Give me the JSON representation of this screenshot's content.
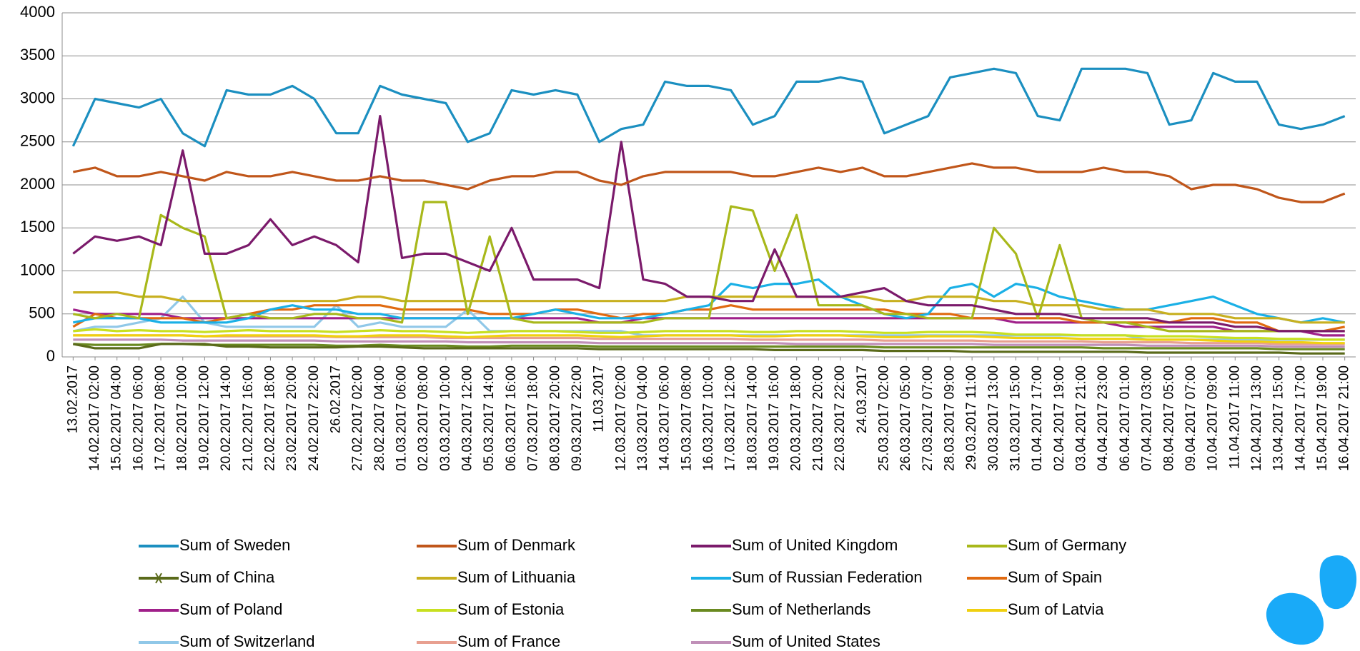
{
  "chart_data": {
    "type": "line",
    "categories": [
      "13.02.2017",
      "14.02.2017 02:00",
      "15.02.2017 04:00",
      "16.02.2017 06:00",
      "17.02.2017 08:00",
      "18.02.2017 10:00",
      "19.02.2017 12:00",
      "20.02.2017 14:00",
      "21.02.2017 16:00",
      "22.02.2017 18:00",
      "23.02.2017 20:00",
      "24.02.2017 22:00",
      "26.02.2017",
      "27.02.2017 02:00",
      "28.02.2017 04:00",
      "01.03.2017 06:00",
      "02.03.2017 08:00",
      "03.03.2017 10:00",
      "04.03.2017 12:00",
      "05.03.2017 14:00",
      "06.03.2017 16:00",
      "07.03.2017 18:00",
      "08.03.2017 20:00",
      "09.03.2017 22:00",
      "11.03.2017",
      "12.03.2017 02:00",
      "13.03.2017 04:00",
      "14.03.2017 06:00",
      "15.03.2017 08:00",
      "16.03.2017 10:00",
      "17.03.2017 12:00",
      "18.03.2017 14:00",
      "19.03.2017 16:00",
      "20.03.2017 18:00",
      "21.03.2017 20:00",
      "22.03.2017 22:00",
      "24.03.2017",
      "25.03.2017 02:00",
      "26.03.2017 05:00",
      "27.03.2017 07:00",
      "28.03.2017 09:00",
      "29.03.2017 11:00",
      "30.03.2017 13:00",
      "31.03.2017 15:00",
      "01.04.2017 17:00",
      "02.04.2017 19:00",
      "03.04.2017 21:00",
      "04.04.2017 23:00",
      "06.04.2017 01:00",
      "07.04.2017 03:00",
      "08.04.2017 05:00",
      "09.04.2017 07:00",
      "10.04.2017 09:00",
      "11.04.2017 11:00",
      "12.04.2017 13:00",
      "13.04.2017 15:00",
      "14.04.2017 17:00",
      "15.04.2017 19:00",
      "16.04.2017 21:00"
    ],
    "series": [
      {
        "name": "Sum of Sweden",
        "color": "#1b8fc0",
        "values": [
          2450,
          3000,
          2950,
          2900,
          3000,
          2600,
          2450,
          3100,
          3050,
          3050,
          3150,
          3000,
          2600,
          2600,
          3150,
          3050,
          3000,
          2950,
          2500,
          2600,
          3100,
          3050,
          3100,
          3050,
          2500,
          2650,
          2700,
          3200,
          3150,
          3150,
          3100,
          2700,
          2800,
          3200,
          3200,
          3250,
          3200,
          2600,
          2700,
          2800,
          3250,
          3300,
          3350,
          3300,
          2800,
          2750,
          3350,
          3350,
          3350,
          3300,
          2700,
          2750,
          3300,
          3200,
          3200,
          2700,
          2650,
          2700,
          2800
        ]
      },
      {
        "name": "Sum of Denmark",
        "color": "#c0561a",
        "values": [
          2150,
          2200,
          2100,
          2100,
          2150,
          2100,
          2050,
          2150,
          2100,
          2100,
          2150,
          2100,
          2050,
          2050,
          2100,
          2050,
          2050,
          2000,
          1950,
          2050,
          2100,
          2100,
          2150,
          2150,
          2050,
          2000,
          2100,
          2150,
          2150,
          2150,
          2150,
          2100,
          2100,
          2150,
          2200,
          2150,
          2200,
          2100,
          2100,
          2150,
          2200,
          2250,
          2200,
          2200,
          2150,
          2150,
          2150,
          2200,
          2150,
          2150,
          2100,
          1950,
          2000,
          2000,
          1950,
          1850,
          1800,
          1800,
          1900
        ]
      },
      {
        "name": "Sum of United Kingdom",
        "color": "#7b1a6b",
        "values": [
          1200,
          1400,
          1350,
          1400,
          1300,
          2400,
          1200,
          1200,
          1300,
          1600,
          1300,
          1400,
          1300,
          1100,
          2800,
          1150,
          1200,
          1200,
          1100,
          1000,
          1500,
          900,
          900,
          900,
          800,
          2500,
          900,
          850,
          700,
          700,
          650,
          650,
          1250,
          700,
          700,
          700,
          750,
          800,
          650,
          600,
          600,
          600,
          550,
          500,
          500,
          500,
          450,
          450,
          450,
          450,
          400,
          400,
          400,
          350,
          350,
          300,
          300,
          300,
          300
        ]
      },
      {
        "name": "Sum of Germany",
        "color": "#a8b81a",
        "values": [
          500,
          450,
          500,
          450,
          1650,
          1500,
          1400,
          450,
          500,
          450,
          450,
          500,
          500,
          450,
          450,
          400,
          1800,
          1800,
          500,
          1400,
          450,
          400,
          400,
          400,
          400,
          400,
          400,
          450,
          450,
          450,
          1750,
          1700,
          1000,
          1650,
          600,
          600,
          600,
          500,
          500,
          450,
          450,
          450,
          1500,
          1200,
          450,
          1300,
          450,
          400,
          400,
          350,
          300,
          300,
          300,
          300,
          300,
          300,
          300,
          300,
          300
        ]
      },
      {
        "name": "Sum of China",
        "color": "#5a6a1a",
        "marker": "star",
        "values": [
          150,
          100,
          100,
          100,
          150,
          150,
          150,
          120,
          120,
          110,
          110,
          110,
          110,
          120,
          120,
          110,
          100,
          100,
          100,
          100,
          100,
          100,
          100,
          100,
          90,
          90,
          90,
          90,
          90,
          90,
          90,
          90,
          80,
          80,
          80,
          80,
          80,
          70,
          70,
          70,
          70,
          60,
          60,
          60,
          60,
          60,
          60,
          60,
          60,
          50,
          50,
          50,
          50,
          50,
          50,
          50,
          40,
          40,
          40
        ]
      },
      {
        "name": "Sum of Lithuania",
        "color": "#c8b020",
        "values": [
          750,
          750,
          750,
          700,
          700,
          650,
          650,
          650,
          650,
          650,
          650,
          650,
          650,
          700,
          700,
          650,
          650,
          650,
          650,
          650,
          650,
          650,
          650,
          650,
          650,
          650,
          650,
          650,
          700,
          700,
          700,
          700,
          700,
          700,
          700,
          700,
          700,
          650,
          650,
          700,
          700,
          700,
          650,
          650,
          600,
          600,
          600,
          550,
          550,
          550,
          500,
          500,
          500,
          450,
          450,
          450,
          400,
          400,
          400
        ]
      },
      {
        "name": "Sum of Russian Federation",
        "color": "#1ab0e6",
        "values": [
          400,
          450,
          450,
          450,
          400,
          400,
          400,
          400,
          450,
          550,
          600,
          550,
          550,
          500,
          500,
          450,
          450,
          450,
          450,
          450,
          450,
          500,
          550,
          500,
          450,
          450,
          450,
          500,
          550,
          600,
          850,
          800,
          850,
          850,
          900,
          700,
          600,
          500,
          450,
          500,
          800,
          850,
          700,
          850,
          800,
          700,
          650,
          600,
          550,
          550,
          600,
          650,
          700,
          600,
          500,
          450,
          400,
          450,
          400
        ]
      },
      {
        "name": "Sum of Spain",
        "color": "#e06a10",
        "values": [
          350,
          500,
          450,
          450,
          450,
          450,
          400,
          450,
          500,
          550,
          550,
          600,
          600,
          600,
          600,
          550,
          550,
          550,
          550,
          500,
          500,
          500,
          550,
          550,
          500,
          450,
          500,
          500,
          550,
          550,
          600,
          550,
          550,
          550,
          550,
          550,
          550,
          550,
          500,
          500,
          500,
          450,
          450,
          450,
          450,
          450,
          400,
          400,
          400,
          400,
          400,
          450,
          450,
          400,
          400,
          300,
          300,
          300,
          350
        ]
      },
      {
        "name": "Sum of Poland",
        "color": "#a0208a",
        "values": [
          550,
          500,
          500,
          500,
          500,
          450,
          450,
          450,
          450,
          450,
          450,
          450,
          450,
          450,
          450,
          450,
          450,
          450,
          450,
          450,
          450,
          450,
          450,
          450,
          400,
          400,
          450,
          450,
          450,
          450,
          450,
          450,
          450,
          450,
          450,
          450,
          450,
          450,
          450,
          450,
          450,
          450,
          450,
          400,
          400,
          400,
          400,
          400,
          350,
          350,
          350,
          350,
          350,
          300,
          300,
          300,
          300,
          250,
          250
        ]
      },
      {
        "name": "Sum of Estonia",
        "color": "#c8e020",
        "values": [
          300,
          320,
          300,
          310,
          300,
          300,
          290,
          300,
          310,
          300,
          300,
          300,
          290,
          300,
          310,
          300,
          300,
          290,
          280,
          290,
          300,
          300,
          300,
          290,
          280,
          280,
          290,
          300,
          300,
          300,
          300,
          290,
          290,
          300,
          300,
          300,
          290,
          280,
          280,
          290,
          290,
          290,
          280,
          260,
          260,
          260,
          250,
          250,
          250,
          240,
          240,
          240,
          230,
          220,
          220,
          210,
          210,
          200,
          200
        ]
      },
      {
        "name": "Sum of Netherlands",
        "color": "#6a8a20",
        "values": [
          150,
          140,
          140,
          140,
          150,
          150,
          140,
          140,
          140,
          140,
          140,
          140,
          130,
          130,
          140,
          130,
          130,
          130,
          120,
          120,
          130,
          130,
          130,
          130,
          120,
          120,
          120,
          120,
          120,
          120,
          120,
          120,
          120,
          120,
          120,
          120,
          120,
          110,
          110,
          110,
          110,
          110,
          110,
          110,
          110,
          110,
          110,
          100,
          100,
          100,
          100,
          100,
          100,
          100,
          100,
          90,
          90,
          90,
          90
        ]
      },
      {
        "name": "Sum of Latvia",
        "color": "#f0d010",
        "values": [
          250,
          250,
          250,
          250,
          250,
          250,
          240,
          250,
          250,
          250,
          250,
          250,
          240,
          240,
          250,
          250,
          250,
          240,
          230,
          240,
          250,
          250,
          250,
          250,
          240,
          230,
          240,
          250,
          250,
          250,
          250,
          240,
          240,
          250,
          250,
          250,
          240,
          230,
          230,
          240,
          240,
          240,
          230,
          220,
          220,
          220,
          210,
          210,
          210,
          200,
          200,
          200,
          190,
          180,
          180,
          170,
          170,
          160,
          160
        ]
      },
      {
        "name": "Sum of Switzerland",
        "color": "#90c8e8",
        "values": [
          300,
          350,
          350,
          400,
          450,
          700,
          400,
          350,
          350,
          350,
          350,
          350,
          600,
          350,
          400,
          350,
          350,
          350,
          550,
          300,
          300,
          300,
          300,
          300,
          300,
          300,
          250,
          250,
          250,
          250,
          250,
          250,
          250,
          250,
          250,
          250,
          250,
          250,
          250,
          250,
          250,
          250,
          250,
          250,
          250,
          250,
          250,
          250,
          250,
          200,
          200,
          200,
          200,
          200,
          200,
          200,
          200,
          200,
          200
        ]
      },
      {
        "name": "Sum of France",
        "color": "#e8a090",
        "values": [
          250,
          250,
          250,
          250,
          250,
          250,
          240,
          240,
          240,
          240,
          240,
          240,
          230,
          230,
          230,
          230,
          230,
          220,
          220,
          220,
          220,
          220,
          220,
          220,
          210,
          210,
          210,
          210,
          210,
          210,
          210,
          200,
          200,
          200,
          200,
          200,
          200,
          190,
          190,
          190,
          190,
          190,
          180,
          180,
          180,
          180,
          180,
          170,
          170,
          170,
          170,
          160,
          160,
          160,
          160,
          150,
          150,
          150,
          150
        ]
      },
      {
        "name": "Sum of United States",
        "color": "#c090b8",
        "values": [
          200,
          200,
          200,
          200,
          200,
          190,
          190,
          190,
          190,
          190,
          190,
          190,
          180,
          180,
          180,
          180,
          180,
          180,
          170,
          170,
          170,
          170,
          170,
          170,
          160,
          160,
          160,
          160,
          160,
          160,
          160,
          160,
          160,
          150,
          150,
          150,
          150,
          150,
          150,
          150,
          150,
          150,
          140,
          140,
          140,
          140,
          140,
          140,
          140,
          130,
          130,
          130,
          130,
          130,
          130,
          120,
          120,
          120,
          120
        ]
      }
    ],
    "ylim": [
      0,
      4000
    ],
    "yticks": [
      0,
      500,
      1000,
      1500,
      2000,
      2500,
      3000,
      3500,
      4000
    ],
    "grid": true,
    "legend": "bottom"
  }
}
